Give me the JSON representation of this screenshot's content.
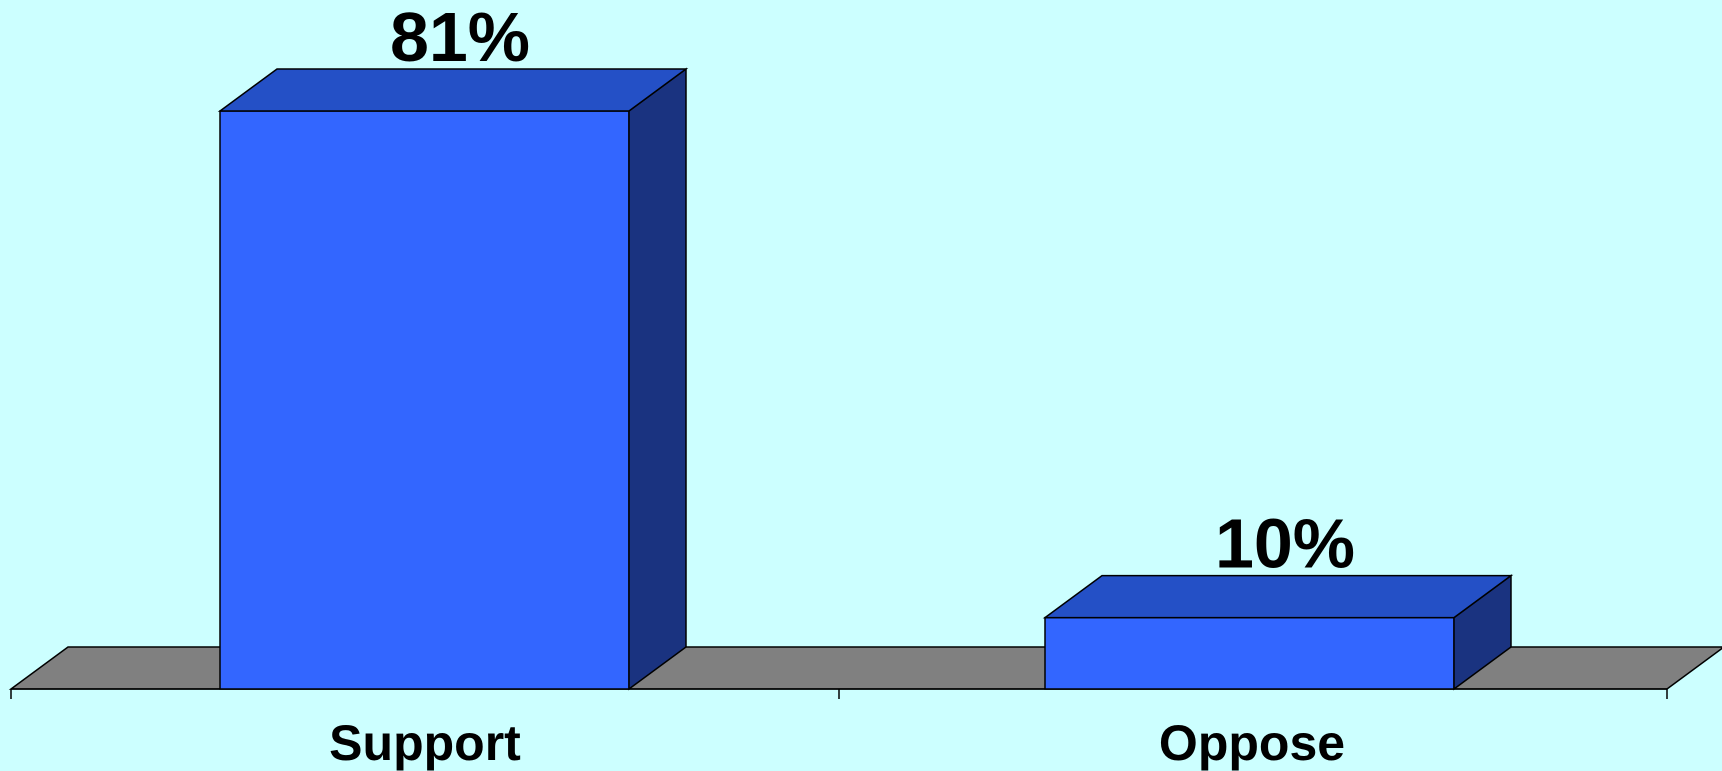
{
  "chart_data": {
    "type": "bar",
    "style": "3d",
    "categories": [
      "Support",
      "Oppose"
    ],
    "values": [
      81,
      10
    ],
    "data_labels": [
      "81%",
      "10%"
    ],
    "title": "",
    "xlabel": "",
    "ylabel": "",
    "ylim": [
      0,
      81
    ],
    "grid": false,
    "legend": "none"
  },
  "colors": {
    "background": "#CCFFFF",
    "bar_front": "#3366FF",
    "bar_top": "#2450C6",
    "bar_side": "#1A3380",
    "floor": "#808080"
  }
}
